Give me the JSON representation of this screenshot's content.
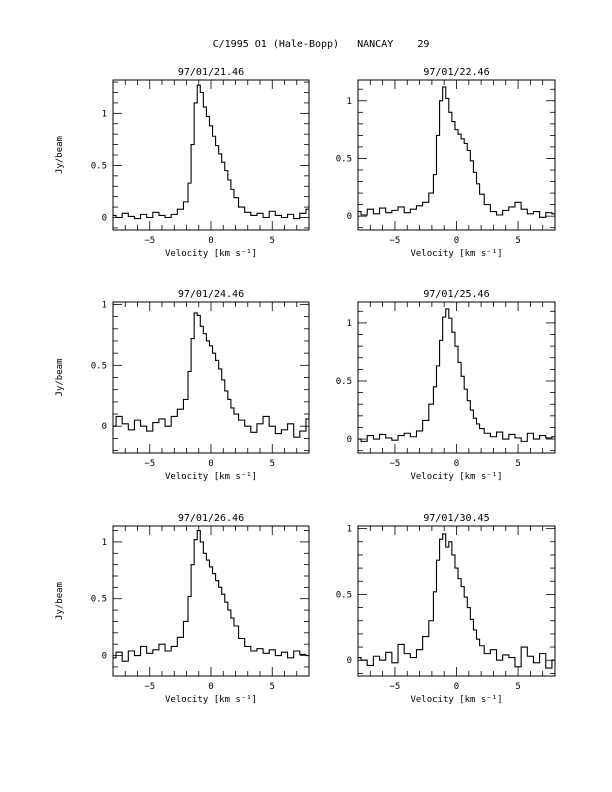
{
  "header": {
    "title": "C/1995 O1 (Hale-Bopp)   NANCAY    29"
  },
  "chart_data": [
    {
      "type": "line",
      "step": true,
      "title": "97/01/21.46",
      "xlabel": "Velocity [km s⁻¹]",
      "ylabel": "Jy/beam",
      "xlim": [
        -8,
        8
      ],
      "ylim": [
        -0.12,
        1.32
      ],
      "xticks": [
        -5,
        0,
        5
      ],
      "yticks": [
        0,
        0.5,
        1
      ],
      "ytick_labels": [
        "0",
        "0.5",
        "1"
      ],
      "x": [
        -8.0,
        -7.5,
        -7.0,
        -6.5,
        -6.0,
        -5.5,
        -5.0,
        -4.5,
        -4.0,
        -3.5,
        -3.0,
        -2.5,
        -2.0,
        -1.75,
        -1.5,
        -1.25,
        -1.0,
        -0.75,
        -0.5,
        -0.25,
        0.0,
        0.25,
        0.5,
        0.75,
        1.0,
        1.25,
        1.5,
        1.75,
        2.0,
        2.5,
        3.0,
        3.5,
        4.0,
        4.5,
        5.0,
        5.5,
        6.0,
        6.5,
        7.0,
        7.5,
        8.0
      ],
      "y": [
        0.02,
        0.0,
        0.04,
        0.01,
        -0.01,
        0.03,
        0.0,
        0.05,
        0.02,
        0.0,
        0.03,
        0.08,
        0.15,
        0.33,
        0.7,
        1.1,
        1.27,
        1.2,
        1.06,
        0.97,
        0.88,
        0.78,
        0.69,
        0.61,
        0.53,
        0.45,
        0.36,
        0.27,
        0.19,
        0.1,
        0.05,
        0.02,
        0.04,
        0.0,
        0.06,
        0.02,
        0.0,
        0.03,
        -0.01,
        0.04,
        0.08
      ]
    },
    {
      "type": "line",
      "step": true,
      "title": "97/01/22.46",
      "xlabel": "Velocity [km s⁻¹]",
      "ylabel": "",
      "xlim": [
        -8,
        8
      ],
      "ylim": [
        -0.12,
        1.18
      ],
      "xticks": [
        -5,
        0,
        5
      ],
      "yticks": [
        0,
        0.5,
        1
      ],
      "ytick_labels": [
        "0",
        "0.5",
        "1"
      ],
      "x": [
        -8.0,
        -7.5,
        -7.0,
        -6.5,
        -6.0,
        -5.5,
        -5.0,
        -4.5,
        -4.0,
        -3.5,
        -3.0,
        -2.5,
        -2.0,
        -1.75,
        -1.5,
        -1.25,
        -1.0,
        -0.75,
        -0.5,
        -0.25,
        0.0,
        0.25,
        0.5,
        0.75,
        1.0,
        1.25,
        1.5,
        1.75,
        2.0,
        2.5,
        3.0,
        3.5,
        4.0,
        4.5,
        5.0,
        5.5,
        6.0,
        6.5,
        7.0,
        7.5,
        8.0
      ],
      "y": [
        0.04,
        0.01,
        0.06,
        0.02,
        0.07,
        0.03,
        0.05,
        0.08,
        0.03,
        0.06,
        0.09,
        0.12,
        0.2,
        0.36,
        0.7,
        1.0,
        1.12,
        1.02,
        0.9,
        0.82,
        0.75,
        0.71,
        0.67,
        0.63,
        0.57,
        0.48,
        0.38,
        0.28,
        0.19,
        0.1,
        0.04,
        0.01,
        0.05,
        0.08,
        0.12,
        0.06,
        0.02,
        0.04,
        -0.01,
        0.03,
        0.02
      ]
    },
    {
      "type": "line",
      "step": true,
      "title": "97/01/24.46",
      "xlabel": "Velocity [km s⁻¹]",
      "ylabel": "Jy/beam",
      "xlim": [
        -8,
        8
      ],
      "ylim": [
        -0.22,
        1.02
      ],
      "xticks": [
        -5,
        0,
        5
      ],
      "yticks": [
        0,
        0.5,
        1
      ],
      "ytick_labels": [
        "0",
        "0.5",
        "1"
      ],
      "x": [
        -8.0,
        -7.5,
        -7.0,
        -6.5,
        -6.0,
        -5.5,
        -5.0,
        -4.5,
        -4.0,
        -3.5,
        -3.0,
        -2.5,
        -2.0,
        -1.75,
        -1.5,
        -1.25,
        -1.0,
        -0.75,
        -0.5,
        -0.25,
        0.0,
        0.25,
        0.5,
        0.75,
        1.0,
        1.25,
        1.5,
        1.75,
        2.0,
        2.5,
        3.0,
        3.5,
        4.0,
        4.5,
        5.0,
        5.5,
        6.0,
        6.5,
        7.0,
        7.5,
        8.0
      ],
      "y": [
        0.0,
        0.08,
        0.02,
        -0.03,
        0.05,
        0.0,
        -0.04,
        0.03,
        0.06,
        0.0,
        0.08,
        0.14,
        0.22,
        0.45,
        0.72,
        0.93,
        0.91,
        0.82,
        0.76,
        0.7,
        0.66,
        0.6,
        0.54,
        0.47,
        0.38,
        0.29,
        0.22,
        0.15,
        0.1,
        0.05,
        0.0,
        -0.05,
        0.02,
        0.08,
        0.0,
        -0.06,
        -0.03,
        0.02,
        -0.09,
        -0.04,
        0.06
      ]
    },
    {
      "type": "line",
      "step": true,
      "title": "97/01/25.46",
      "xlabel": "Velocity [km s⁻¹]",
      "ylabel": "",
      "xlim": [
        -8,
        8
      ],
      "ylim": [
        -0.12,
        1.18
      ],
      "xticks": [
        -5,
        0,
        5
      ],
      "yticks": [
        0,
        0.5,
        1
      ],
      "ytick_labels": [
        "0",
        "0.5",
        "1"
      ],
      "x": [
        -8.0,
        -7.5,
        -7.0,
        -6.5,
        -6.0,
        -5.5,
        -5.0,
        -4.5,
        -4.0,
        -3.5,
        -3.0,
        -2.5,
        -2.0,
        -1.75,
        -1.5,
        -1.25,
        -1.0,
        -0.75,
        -0.5,
        -0.25,
        0.0,
        0.25,
        0.5,
        0.75,
        1.0,
        1.25,
        1.5,
        1.75,
        2.0,
        2.5,
        3.0,
        3.5,
        4.0,
        4.5,
        5.0,
        5.5,
        6.0,
        6.5,
        7.0,
        7.5,
        8.0
      ],
      "y": [
        0.0,
        -0.02,
        0.03,
        0.0,
        0.04,
        0.01,
        -0.01,
        0.03,
        0.05,
        0.02,
        0.07,
        0.16,
        0.3,
        0.45,
        0.63,
        0.85,
        1.05,
        1.12,
        1.04,
        0.92,
        0.8,
        0.66,
        0.54,
        0.43,
        0.33,
        0.25,
        0.18,
        0.13,
        0.09,
        0.05,
        0.02,
        0.06,
        0.0,
        0.04,
        0.01,
        -0.02,
        0.05,
        0.0,
        0.03,
        0.01,
        0.02
      ]
    },
    {
      "type": "line",
      "step": true,
      "title": "97/01/26.46",
      "xlabel": "Velocity [km s⁻¹]",
      "ylabel": "Jy/beam",
      "xlim": [
        -8,
        8
      ],
      "ylim": [
        -0.18,
        1.14
      ],
      "xticks": [
        -5,
        0,
        5
      ],
      "yticks": [
        0,
        0.5,
        1
      ],
      "ytick_labels": [
        "0",
        "0.5",
        "1"
      ],
      "x": [
        -8.0,
        -7.5,
        -7.0,
        -6.5,
        -6.0,
        -5.5,
        -5.0,
        -4.5,
        -4.0,
        -3.5,
        -3.0,
        -2.5,
        -2.0,
        -1.75,
        -1.5,
        -1.25,
        -1.0,
        -0.75,
        -0.5,
        -0.25,
        0.0,
        0.25,
        0.5,
        0.75,
        1.0,
        1.25,
        1.5,
        1.75,
        2.0,
        2.5,
        3.0,
        3.5,
        4.0,
        4.5,
        5.0,
        5.5,
        6.0,
        6.5,
        7.0,
        7.5,
        8.0
      ],
      "y": [
        -0.02,
        0.03,
        -0.05,
        0.04,
        0.0,
        0.08,
        0.02,
        0.05,
        0.1,
        0.04,
        0.08,
        0.16,
        0.3,
        0.52,
        0.8,
        1.02,
        1.1,
        1.0,
        0.9,
        0.84,
        0.78,
        0.72,
        0.66,
        0.6,
        0.54,
        0.47,
        0.4,
        0.33,
        0.26,
        0.15,
        0.08,
        0.04,
        0.06,
        0.02,
        0.05,
        0.0,
        0.03,
        -0.02,
        0.04,
        0.01,
        0.0
      ]
    },
    {
      "type": "line",
      "step": true,
      "title": "97/01/30.45",
      "xlabel": "Velocity [km s⁻¹]",
      "ylabel": "",
      "xlim": [
        -8,
        8
      ],
      "ylim": [
        -0.12,
        1.02
      ],
      "xticks": [
        -5,
        0,
        5
      ],
      "yticks": [
        0,
        0.5,
        1
      ],
      "ytick_labels": [
        "0",
        "0.5",
        "1"
      ],
      "x": [
        -8.0,
        -7.5,
        -7.0,
        -6.5,
        -6.0,
        -5.5,
        -5.0,
        -4.5,
        -4.0,
        -3.5,
        -3.0,
        -2.5,
        -2.0,
        -1.75,
        -1.5,
        -1.25,
        -1.0,
        -0.75,
        -0.5,
        -0.25,
        0.0,
        0.25,
        0.5,
        0.75,
        1.0,
        1.25,
        1.5,
        1.75,
        2.0,
        2.5,
        3.0,
        3.5,
        4.0,
        4.5,
        5.0,
        5.5,
        6.0,
        6.5,
        7.0,
        7.5,
        8.0
      ],
      "y": [
        0.02,
        0.0,
        -0.04,
        0.03,
        0.0,
        0.06,
        -0.02,
        0.12,
        0.05,
        0.02,
        0.08,
        0.18,
        0.3,
        0.52,
        0.76,
        0.92,
        0.96,
        0.86,
        0.9,
        0.8,
        0.7,
        0.62,
        0.56,
        0.48,
        0.4,
        0.31,
        0.23,
        0.16,
        0.11,
        0.05,
        0.08,
        0.0,
        0.04,
        0.02,
        -0.05,
        0.1,
        0.03,
        -0.02,
        0.05,
        -0.06,
        0.0
      ]
    }
  ]
}
